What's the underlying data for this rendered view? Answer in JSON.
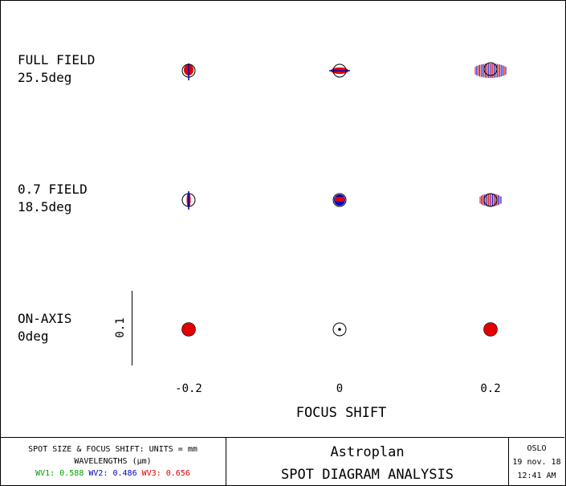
{
  "chart_data": {
    "type": "scatter",
    "title": "SPOT DIAGRAM ANALYSIS",
    "xlabel": "FOCUS SHIFT",
    "x_ticks": [
      "-0.2",
      "0",
      "0.2"
    ],
    "scale_bar_label": "0.1",
    "rows": [
      {
        "name": "FULL FIELD",
        "angle": "25.5deg"
      },
      {
        "name": "0.7 FIELD",
        "angle": "18.5deg"
      },
      {
        "name": "ON-AXIS",
        "angle": "0deg"
      }
    ],
    "spots": [
      {
        "field": "FULL FIELD",
        "focus_shift": -0.2,
        "shape": "small-oval"
      },
      {
        "field": "FULL FIELD",
        "focus_shift": 0,
        "shape": "flat-ellipse"
      },
      {
        "field": "FULL FIELD",
        "focus_shift": 0.2,
        "shape": "wide-fan"
      },
      {
        "field": "0.7 FIELD",
        "focus_shift": -0.2,
        "shape": "vertical-line"
      },
      {
        "field": "0.7 FIELD",
        "focus_shift": 0,
        "shape": "small-disc"
      },
      {
        "field": "0.7 FIELD",
        "focus_shift": 0.2,
        "shape": "fan"
      },
      {
        "field": "ON-AXIS",
        "focus_shift": -0.2,
        "shape": "filled-disc"
      },
      {
        "field": "ON-AXIS",
        "focus_shift": 0,
        "shape": "point"
      },
      {
        "field": "ON-AXIS",
        "focus_shift": 0.2,
        "shape": "filled-disc"
      }
    ],
    "wavelength_colors": {
      "wv1": "#00a000",
      "wv2": "#0000c0",
      "wv3": "#e00000"
    }
  },
  "footer": {
    "units_line": "SPOT SIZE & FOCUS SHIFT: UNITS = mm",
    "wavelengths_line": "WAVELENGTHS (µm)",
    "wv1": "WV1: 0.588",
    "wv2": "WV2: 0.486",
    "wv3": "WV3: 0.656",
    "program": "Astroplan",
    "title": "SPOT DIAGRAM ANALYSIS",
    "software": "OSLO",
    "date": "19 nov. 18",
    "time": "12:41 AM"
  }
}
